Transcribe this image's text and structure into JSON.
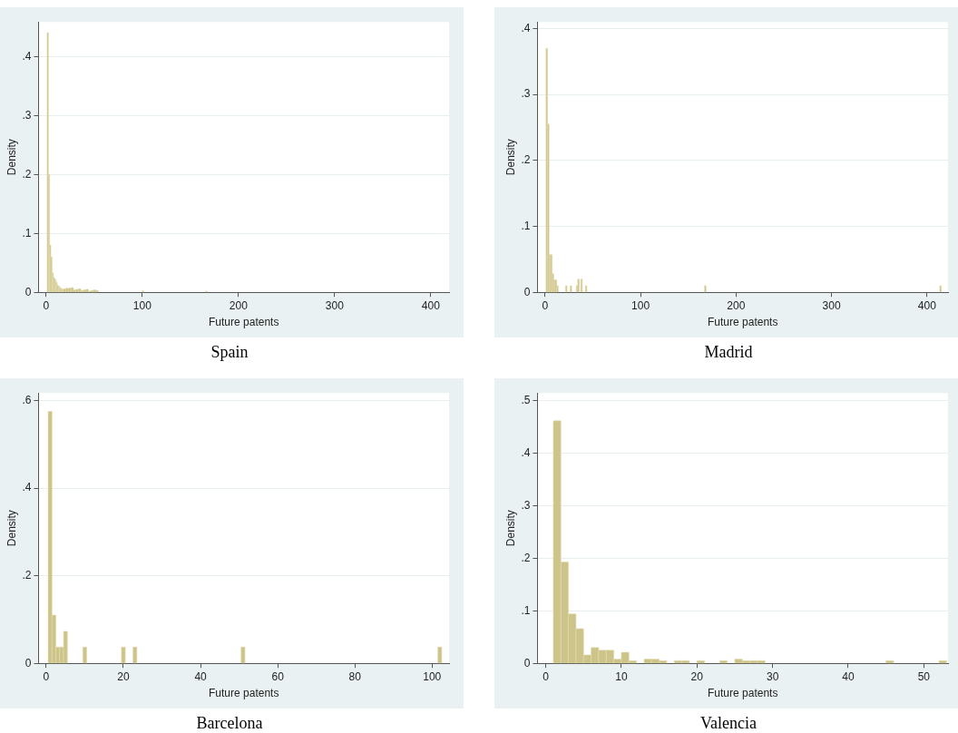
{
  "chart_data": [
    {
      "type": "histogram",
      "title": "Spain",
      "xlabel": "Future patents",
      "ylabel": "Density",
      "color": "#cdc48a",
      "grid": "y",
      "bins": [
        1,
        2.3,
        3.6,
        4.9,
        6.2,
        7.5,
        8.8,
        10.1,
        11.4,
        12.7,
        14,
        15.3,
        16.6,
        17.9,
        20.5,
        23.1,
        25.7,
        28.3,
        30.9,
        33.5,
        36.1,
        38.7,
        41.3,
        43.9,
        46.5,
        49.1,
        51.7,
        54.3,
        100,
        101.3,
        166,
        167.3
      ],
      "values": [
        0.441,
        0.2,
        0.08,
        0.06,
        0.033,
        0.025,
        0.022,
        0.017,
        0.012,
        0.01,
        0.008,
        0.006,
        0.005,
        0.006,
        0.007,
        0.007,
        0.008,
        0.004,
        0.005,
        0.006,
        0.003,
        0.004,
        0.005,
        0.002,
        0.003,
        0.004,
        0.003,
        0,
        0.003,
        0,
        0.002
      ],
      "xlim": [
        -8,
        419
      ],
      "xticks": [
        0,
        100,
        200,
        300,
        400
      ],
      "ylim": [
        0,
        0.459
      ],
      "yticks": [
        {
          "value": 0,
          "label": "0"
        },
        {
          "value": 0.1,
          "label": ".1"
        },
        {
          "value": 0.2,
          "label": ".2"
        },
        {
          "value": 0.3,
          "label": ".3"
        },
        {
          "value": 0.4,
          "label": ".4"
        }
      ]
    },
    {
      "type": "histogram",
      "title": "Madrid",
      "xlabel": "Future patents",
      "ylabel": "Density",
      "color": "#cdc48a",
      "grid": "y",
      "bins": [
        1,
        2.6,
        4.2,
        5.8,
        7.4,
        9,
        10.6,
        12.2,
        13.8,
        21.4,
        23,
        26.2,
        27.8,
        32.6,
        34.2,
        35.8,
        37.4,
        39,
        42.2,
        43.8,
        167,
        168.6,
        413.4,
        415
      ],
      "values": [
        0.37,
        0.255,
        0.057,
        0.057,
        0.028,
        0.019,
        0.019,
        0.01,
        0,
        0.01,
        0,
        0.01,
        0,
        0.01,
        0.02,
        0,
        0.02,
        0,
        0.01,
        0,
        0.01,
        0,
        0.01
      ],
      "xlim": [
        -8,
        422
      ],
      "xticks": [
        0,
        100,
        200,
        300,
        400
      ],
      "ylim": [
        0,
        0.41
      ],
      "yticks": [
        {
          "value": 0,
          "label": "0"
        },
        {
          "value": 0.1,
          "label": ".1"
        },
        {
          "value": 0.2,
          "label": ".2"
        },
        {
          "value": 0.3,
          "label": ".3"
        },
        {
          "value": 0.4,
          "label": ".4"
        }
      ]
    },
    {
      "type": "histogram",
      "title": "Barcelona",
      "xlabel": "Future patents",
      "ylabel": "Density",
      "color": "#cdc48a",
      "grid": "y",
      "bins": [
        0.5,
        1.5,
        2.5,
        3.5,
        4.5,
        5.5,
        9.5,
        10.5,
        19.5,
        20.5,
        22.5,
        23.5,
        50.5,
        51.5,
        101.5,
        102.5
      ],
      "values": [
        0.575,
        0.11,
        0.037,
        0.037,
        0.073,
        0,
        0.037,
        0,
        0.037,
        0,
        0.037,
        0,
        0.037,
        0,
        0.037
      ],
      "xlim": [
        -2,
        104.4
      ],
      "xticks": [
        0,
        20,
        40,
        60,
        80,
        100
      ],
      "ylim": [
        0,
        0.617
      ],
      "yticks": [
        {
          "value": 0,
          "label": "0"
        },
        {
          "value": 0.2,
          "label": ".2"
        },
        {
          "value": 0.4,
          "label": ".4"
        },
        {
          "value": 0.6,
          "label": ".6"
        }
      ]
    },
    {
      "type": "histogram",
      "title": "Valencia",
      "xlabel": "Future patents",
      "ylabel": "Density",
      "color": "#cdc48a",
      "grid": "y",
      "bins": [
        1,
        2,
        3,
        4,
        5,
        6,
        7,
        8,
        9,
        10,
        11,
        12,
        13,
        14,
        15,
        16,
        17,
        18,
        19,
        20,
        21,
        23,
        24,
        25,
        26,
        27,
        28,
        29,
        45,
        46,
        52,
        53
      ],
      "values": [
        0.462,
        0.193,
        0.094,
        0.066,
        0.016,
        0.03,
        0.025,
        0.025,
        0.008,
        0.021,
        0.005,
        0,
        0.008,
        0.008,
        0.005,
        0,
        0.005,
        0.005,
        0,
        0.005,
        0,
        0.005,
        0,
        0.008,
        0.005,
        0.005,
        0.005,
        0,
        0.005,
        0,
        0.005
      ],
      "xlim": [
        -1.1,
        53.2
      ],
      "xticks": [
        0,
        10,
        20,
        30,
        40,
        50
      ],
      "ylim": [
        0,
        0.515
      ],
      "yticks": [
        {
          "value": 0,
          "label": "0"
        },
        {
          "value": 0.1,
          "label": ".1"
        },
        {
          "value": 0.2,
          "label": ".2"
        },
        {
          "value": 0.3,
          "label": ".3"
        },
        {
          "value": 0.4,
          "label": ".4"
        },
        {
          "value": 0.5,
          "label": ".5"
        }
      ]
    }
  ]
}
